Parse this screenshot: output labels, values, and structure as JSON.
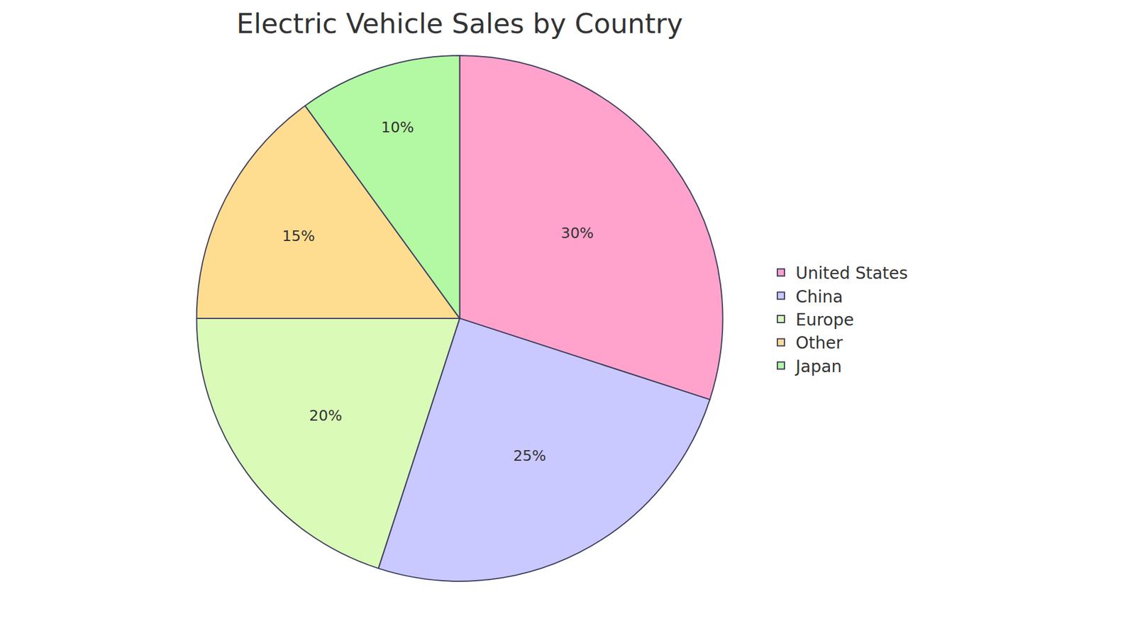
{
  "chart_data": {
    "type": "pie",
    "title": "Electric Vehicle Sales by Country",
    "categories": [
      "United States",
      "China",
      "Europe",
      "Other",
      "Japan"
    ],
    "values": [
      30,
      25,
      20,
      15,
      10
    ],
    "value_labels": [
      "30%",
      "25%",
      "20%",
      "15%",
      "10%"
    ],
    "colors": [
      "#ffa3cc",
      "#c9c9ff",
      "#dafab8",
      "#fedd91",
      "#b3f8a3"
    ],
    "data_labels": true,
    "legend": "right"
  }
}
